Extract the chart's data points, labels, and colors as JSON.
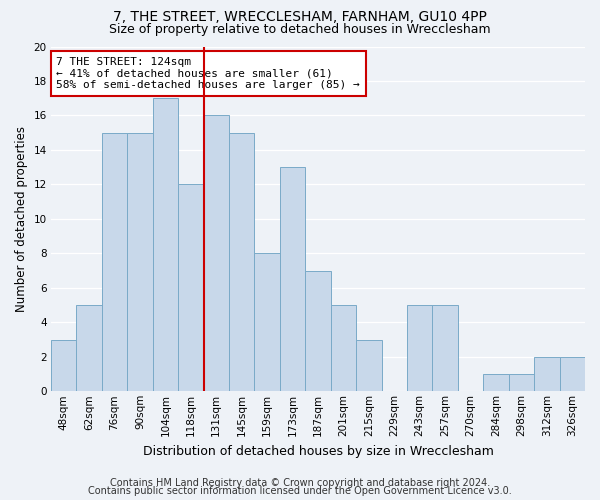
{
  "title1": "7, THE STREET, WRECCLESHAM, FARNHAM, GU10 4PP",
  "title2": "Size of property relative to detached houses in Wrecclesham",
  "xlabel": "Distribution of detached houses by size in Wrecclesham",
  "ylabel": "Number of detached properties",
  "footnote1": "Contains HM Land Registry data © Crown copyright and database right 2024.",
  "footnote2": "Contains public sector information licensed under the Open Government Licence v3.0.",
  "annotation_line1": "7 THE STREET: 124sqm",
  "annotation_line2": "← 41% of detached houses are smaller (61)",
  "annotation_line3": "58% of semi-detached houses are larger (85) →",
  "bar_color": "#c8d8ea",
  "bar_edge_color": "#7aaac8",
  "ref_line_color": "#cc0000",
  "ref_line_x": 6,
  "categories": [
    "48sqm",
    "62sqm",
    "76sqm",
    "90sqm",
    "104sqm",
    "118sqm",
    "131sqm",
    "145sqm",
    "159sqm",
    "173sqm",
    "187sqm",
    "201sqm",
    "215sqm",
    "229sqm",
    "243sqm",
    "257sqm",
    "270sqm",
    "284sqm",
    "298sqm",
    "312sqm",
    "326sqm"
  ],
  "values": [
    3,
    5,
    15,
    15,
    17,
    12,
    16,
    15,
    8,
    13,
    7,
    5,
    3,
    0,
    5,
    5,
    0,
    1,
    1,
    2,
    2
  ],
  "ylim": [
    0,
    20
  ],
  "yticks": [
    0,
    2,
    4,
    6,
    8,
    10,
    12,
    14,
    16,
    18,
    20
  ],
  "bg_color": "#eef2f7",
  "annotation_box_color": "#ffffff",
  "annotation_box_edge": "#cc0000",
  "title1_fontsize": 10,
  "title2_fontsize": 9,
  "xlabel_fontsize": 9,
  "ylabel_fontsize": 8.5,
  "tick_fontsize": 7.5,
  "annotation_fontsize": 8,
  "footnote_fontsize": 7
}
